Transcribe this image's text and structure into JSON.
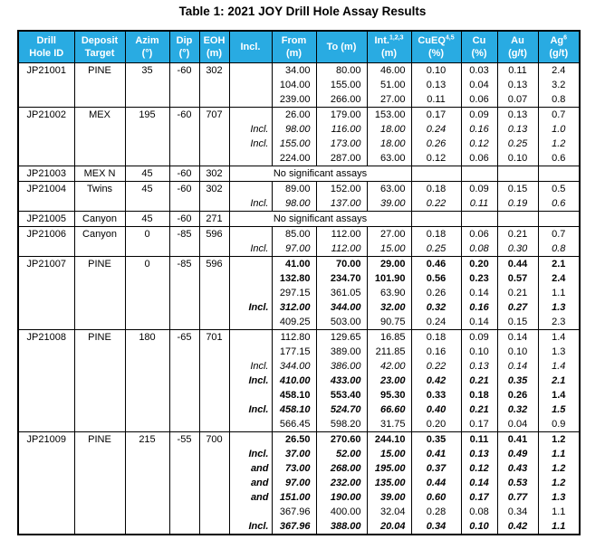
{
  "title": "Table 1: 2021 JOY Drill Hole Assay Results",
  "colors": {
    "header_bg": "#29ABE2",
    "header_text": "#FFFFFF",
    "border": "#000000"
  },
  "columns": [
    {
      "id": "drill-hole-id",
      "line1": "Drill",
      "line2": "Hole ID"
    },
    {
      "id": "deposit-target",
      "line1": "Deposit",
      "line2": "Target"
    },
    {
      "id": "azim",
      "line1": "Azim",
      "line2": "(°)"
    },
    {
      "id": "dip",
      "line1": "Dip",
      "line2": "(°)"
    },
    {
      "id": "eoh",
      "line1": "EOH",
      "line2": "(m)"
    },
    {
      "id": "incl",
      "line1": "Incl.",
      "line2": ""
    },
    {
      "id": "from",
      "line1": "From",
      "line2": "(m)"
    },
    {
      "id": "to",
      "line1": "To (m)",
      "line2": ""
    },
    {
      "id": "int",
      "line1": "Int.",
      "sup": "1,2,3",
      "line2": "(m)"
    },
    {
      "id": "cueq",
      "line1": "CuEQ",
      "sup": "4,5",
      "line2": "(%)"
    },
    {
      "id": "cu",
      "line1": "Cu",
      "line2": "(%)"
    },
    {
      "id": "au",
      "line1": "Au",
      "line2": "(g/t)"
    },
    {
      "id": "ag",
      "line1": "Ag",
      "sup": "6",
      "line2": "(g/t)"
    }
  ],
  "no_assay_note": "No significant assays",
  "holes": [
    {
      "id": "JP21001",
      "target": "PINE",
      "azim": "35",
      "dip": "-60",
      "eoh": "302",
      "no_significant": false,
      "intervals": [
        {
          "incl": "",
          "from": "34.00",
          "to": "80.00",
          "int": "46.00",
          "cueq": "0.10",
          "cu": "0.03",
          "au": "0.11",
          "ag": "2.4",
          "style": "normal"
        },
        {
          "incl": "",
          "from": "104.00",
          "to": "155.00",
          "int": "51.00",
          "cueq": "0.13",
          "cu": "0.04",
          "au": "0.13",
          "ag": "3.2",
          "style": "normal"
        },
        {
          "incl": "",
          "from": "239.00",
          "to": "266.00",
          "int": "27.00",
          "cueq": "0.11",
          "cu": "0.06",
          "au": "0.07",
          "ag": "0.8",
          "style": "normal"
        }
      ]
    },
    {
      "id": "JP21002",
      "target": "MEX",
      "azim": "195",
      "dip": "-60",
      "eoh": "707",
      "no_significant": false,
      "intervals": [
        {
          "incl": "",
          "from": "26.00",
          "to": "179.00",
          "int": "153.00",
          "cueq": "0.17",
          "cu": "0.09",
          "au": "0.13",
          "ag": "0.7",
          "style": "normal"
        },
        {
          "incl": "Incl.",
          "from": "98.00",
          "to": "116.00",
          "int": "18.00",
          "cueq": "0.24",
          "cu": "0.16",
          "au": "0.13",
          "ag": "1.0",
          "style": "italic"
        },
        {
          "incl": "Incl.",
          "from": "155.00",
          "to": "173.00",
          "int": "18.00",
          "cueq": "0.26",
          "cu": "0.12",
          "au": "0.25",
          "ag": "1.2",
          "style": "italic"
        },
        {
          "incl": "",
          "from": "224.00",
          "to": "287.00",
          "int": "63.00",
          "cueq": "0.12",
          "cu": "0.06",
          "au": "0.10",
          "ag": "0.6",
          "style": "normal"
        }
      ]
    },
    {
      "id": "JP21003",
      "target": "MEX N",
      "azim": "45",
      "dip": "-60",
      "eoh": "302",
      "no_significant": true,
      "intervals": []
    },
    {
      "id": "JP21004",
      "target": "Twins",
      "azim": "45",
      "dip": "-60",
      "eoh": "302",
      "no_significant": false,
      "intervals": [
        {
          "incl": "",
          "from": "89.00",
          "to": "152.00",
          "int": "63.00",
          "cueq": "0.18",
          "cu": "0.09",
          "au": "0.15",
          "ag": "0.5",
          "style": "normal"
        },
        {
          "incl": "Incl.",
          "from": "98.00",
          "to": "137.00",
          "int": "39.00",
          "cueq": "0.22",
          "cu": "0.11",
          "au": "0.19",
          "ag": "0.6",
          "style": "italic"
        }
      ]
    },
    {
      "id": "JP21005",
      "target": "Canyon",
      "azim": "45",
      "dip": "-60",
      "eoh": "271",
      "no_significant": true,
      "intervals": []
    },
    {
      "id": "JP21006",
      "target": "Canyon",
      "azim": "0",
      "dip": "-85",
      "eoh": "596",
      "no_significant": false,
      "intervals": [
        {
          "incl": "",
          "from": "85.00",
          "to": "112.00",
          "int": "27.00",
          "cueq": "0.18",
          "cu": "0.06",
          "au": "0.21",
          "ag": "0.7",
          "style": "normal"
        },
        {
          "incl": "Incl.",
          "from": "97.00",
          "to": "112.00",
          "int": "15.00",
          "cueq": "0.25",
          "cu": "0.08",
          "au": "0.30",
          "ag": "0.8",
          "style": "italic"
        }
      ]
    },
    {
      "id": "JP21007",
      "target": "PINE",
      "azim": "0",
      "dip": "-85",
      "eoh": "596",
      "no_significant": false,
      "intervals": [
        {
          "incl": "",
          "from": "41.00",
          "to": "70.00",
          "int": "29.00",
          "cueq": "0.46",
          "cu": "0.20",
          "au": "0.44",
          "ag": "2.1",
          "style": "bold"
        },
        {
          "incl": "",
          "from": "132.80",
          "to": "234.70",
          "int": "101.90",
          "cueq": "0.56",
          "cu": "0.23",
          "au": "0.57",
          "ag": "2.4",
          "style": "bold"
        },
        {
          "incl": "",
          "from": "297.15",
          "to": "361.05",
          "int": "63.90",
          "cueq": "0.26",
          "cu": "0.14",
          "au": "0.21",
          "ag": "1.1",
          "style": "normal"
        },
        {
          "incl": "Incl.",
          "from": "312.00",
          "to": "344.00",
          "int": "32.00",
          "cueq": "0.32",
          "cu": "0.16",
          "au": "0.27",
          "ag": "1.3",
          "style": "bold-italic"
        },
        {
          "incl": "",
          "from": "409.25",
          "to": "503.00",
          "int": "90.75",
          "cueq": "0.24",
          "cu": "0.14",
          "au": "0.15",
          "ag": "2.3",
          "style": "normal"
        }
      ]
    },
    {
      "id": "JP21008",
      "target": "PINE",
      "azim": "180",
      "dip": "-65",
      "eoh": "701",
      "no_significant": false,
      "intervals": [
        {
          "incl": "",
          "from": "112.80",
          "to": "129.65",
          "int": "16.85",
          "cueq": "0.18",
          "cu": "0.09",
          "au": "0.14",
          "ag": "1.4",
          "style": "normal"
        },
        {
          "incl": "",
          "from": "177.15",
          "to": "389.00",
          "int": "211.85",
          "cueq": "0.16",
          "cu": "0.10",
          "au": "0.10",
          "ag": "1.3",
          "style": "normal"
        },
        {
          "incl": "Incl.",
          "from": "344.00",
          "to": "386.00",
          "int": "42.00",
          "cueq": "0.22",
          "cu": "0.13",
          "au": "0.14",
          "ag": "1.4",
          "style": "italic"
        },
        {
          "incl": "Incl.",
          "from": "410.00",
          "to": "433.00",
          "int": "23.00",
          "cueq": "0.42",
          "cu": "0.21",
          "au": "0.35",
          "ag": "2.1",
          "style": "bold-italic"
        },
        {
          "incl": "",
          "from": "458.10",
          "to": "553.40",
          "int": "95.30",
          "cueq": "0.33",
          "cu": "0.18",
          "au": "0.26",
          "ag": "1.4",
          "style": "bold"
        },
        {
          "incl": "Incl.",
          "from": "458.10",
          "to": "524.70",
          "int": "66.60",
          "cueq": "0.40",
          "cu": "0.21",
          "au": "0.32",
          "ag": "1.5",
          "style": "bold-italic"
        },
        {
          "incl": "",
          "from": "566.45",
          "to": "598.20",
          "int": "31.75",
          "cueq": "0.20",
          "cu": "0.17",
          "au": "0.04",
          "ag": "0.9",
          "style": "normal"
        }
      ]
    },
    {
      "id": "JP21009",
      "target": "PINE",
      "azim": "215",
      "dip": "-55",
      "eoh": "700",
      "no_significant": false,
      "intervals": [
        {
          "incl": "",
          "from": "26.50",
          "to": "270.60",
          "int": "244.10",
          "cueq": "0.35",
          "cu": "0.11",
          "au": "0.41",
          "ag": "1.2",
          "style": "bold"
        },
        {
          "incl": "Incl.",
          "from": "37.00",
          "to": "52.00",
          "int": "15.00",
          "cueq": "0.41",
          "cu": "0.13",
          "au": "0.49",
          "ag": "1.1",
          "style": "bold-italic"
        },
        {
          "incl": "and",
          "from": "73.00",
          "to": "268.00",
          "int": "195.00",
          "cueq": "0.37",
          "cu": "0.12",
          "au": "0.43",
          "ag": "1.2",
          "style": "bold-italic"
        },
        {
          "incl": "and",
          "from": "97.00",
          "to": "232.00",
          "int": "135.00",
          "cueq": "0.44",
          "cu": "0.14",
          "au": "0.53",
          "ag": "1.2",
          "style": "bold-italic"
        },
        {
          "incl": "and",
          "from": "151.00",
          "to": "190.00",
          "int": "39.00",
          "cueq": "0.60",
          "cu": "0.17",
          "au": "0.77",
          "ag": "1.3",
          "style": "bold-italic"
        },
        {
          "incl": "",
          "from": "367.96",
          "to": "400.00",
          "int": "32.04",
          "cueq": "0.28",
          "cu": "0.08",
          "au": "0.34",
          "ag": "1.1",
          "style": "normal"
        },
        {
          "incl": "Incl.",
          "from": "367.96",
          "to": "388.00",
          "int": "20.04",
          "cueq": "0.34",
          "cu": "0.10",
          "au": "0.42",
          "ag": "1.1",
          "style": "bold-italic"
        }
      ]
    }
  ]
}
